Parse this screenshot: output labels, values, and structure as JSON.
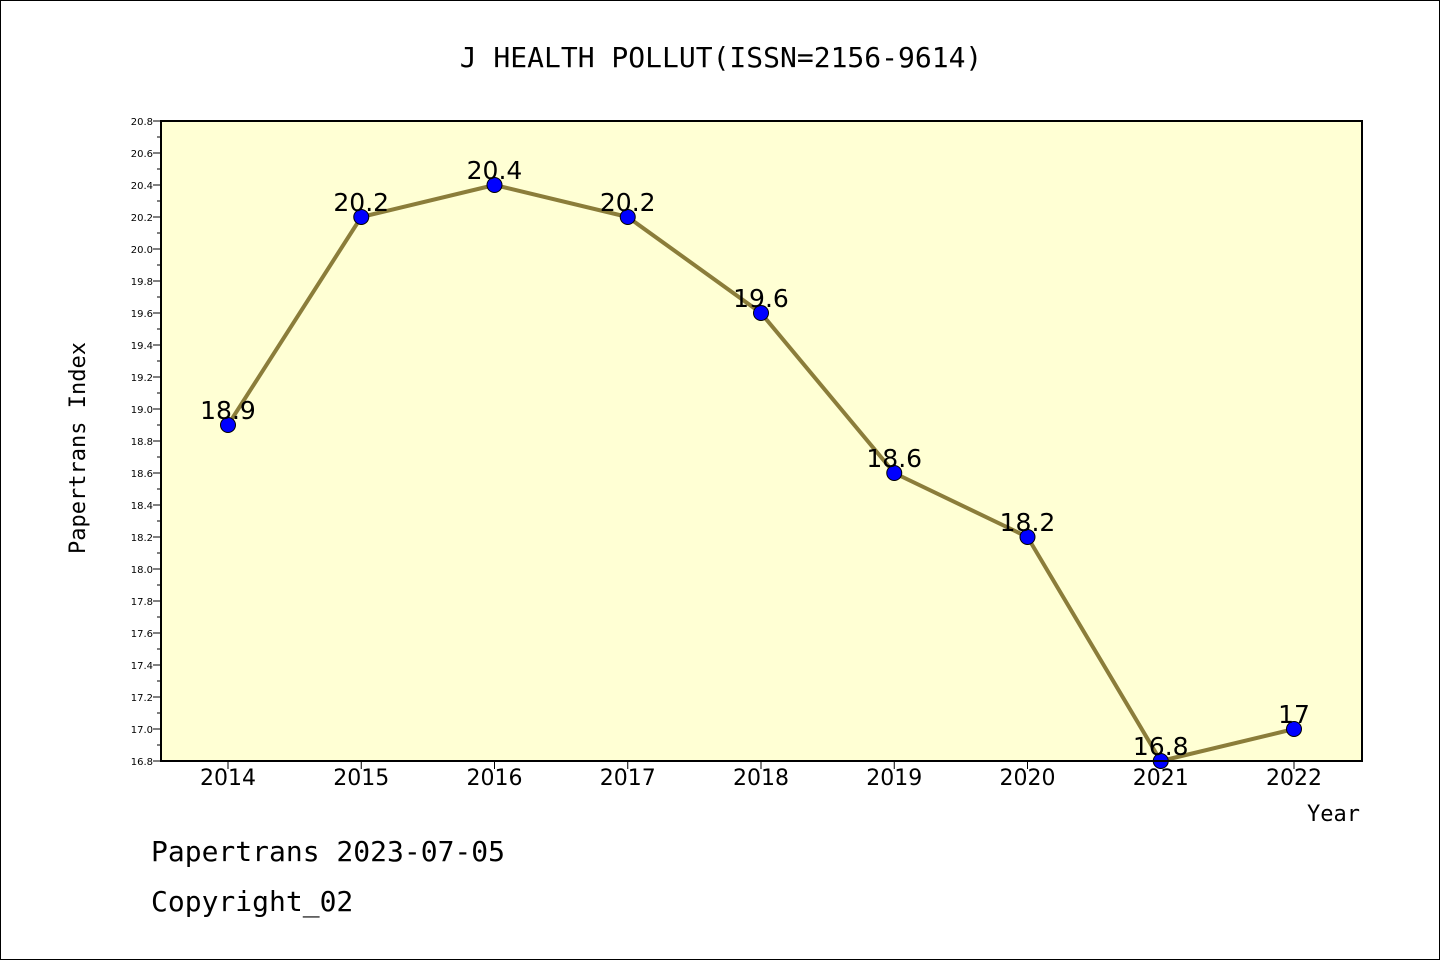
{
  "chart_data": {
    "type": "line",
    "title": "J HEALTH POLLUT(ISSN=2156-9614)",
    "xlabel": "Year",
    "ylabel": "Papertrans Index",
    "ylim": [
      16.8,
      20.8
    ],
    "ytick_step": 0.2,
    "yticks": [
      "16.8",
      "17.0",
      "17.2",
      "17.4",
      "17.6",
      "17.8",
      "18.0",
      "18.2",
      "18.4",
      "18.6",
      "18.8",
      "19.0",
      "19.2",
      "19.4",
      "19.6",
      "19.8",
      "20.0",
      "20.2",
      "20.4",
      "20.6",
      "20.8"
    ],
    "categories": [
      "2014",
      "2015",
      "2016",
      "2017",
      "2018",
      "2019",
      "2020",
      "2021",
      "2022"
    ],
    "series": [
      {
        "values": [
          18.9,
          20.2,
          20.4,
          20.2,
          19.6,
          18.6,
          18.2,
          16.8,
          17
        ],
        "labels": [
          "18.9",
          "20.2",
          "20.4",
          "20.2",
          "19.6",
          "18.6",
          "18.2",
          "16.8",
          "17"
        ]
      }
    ],
    "grid": false,
    "colors": {
      "plot_background": "#ffffd4",
      "line": "#8b7d3a",
      "marker": "#0000ff"
    }
  },
  "footer": {
    "date_line": "Papertrans 2023-07-05",
    "copyright": "Copyright_02"
  }
}
